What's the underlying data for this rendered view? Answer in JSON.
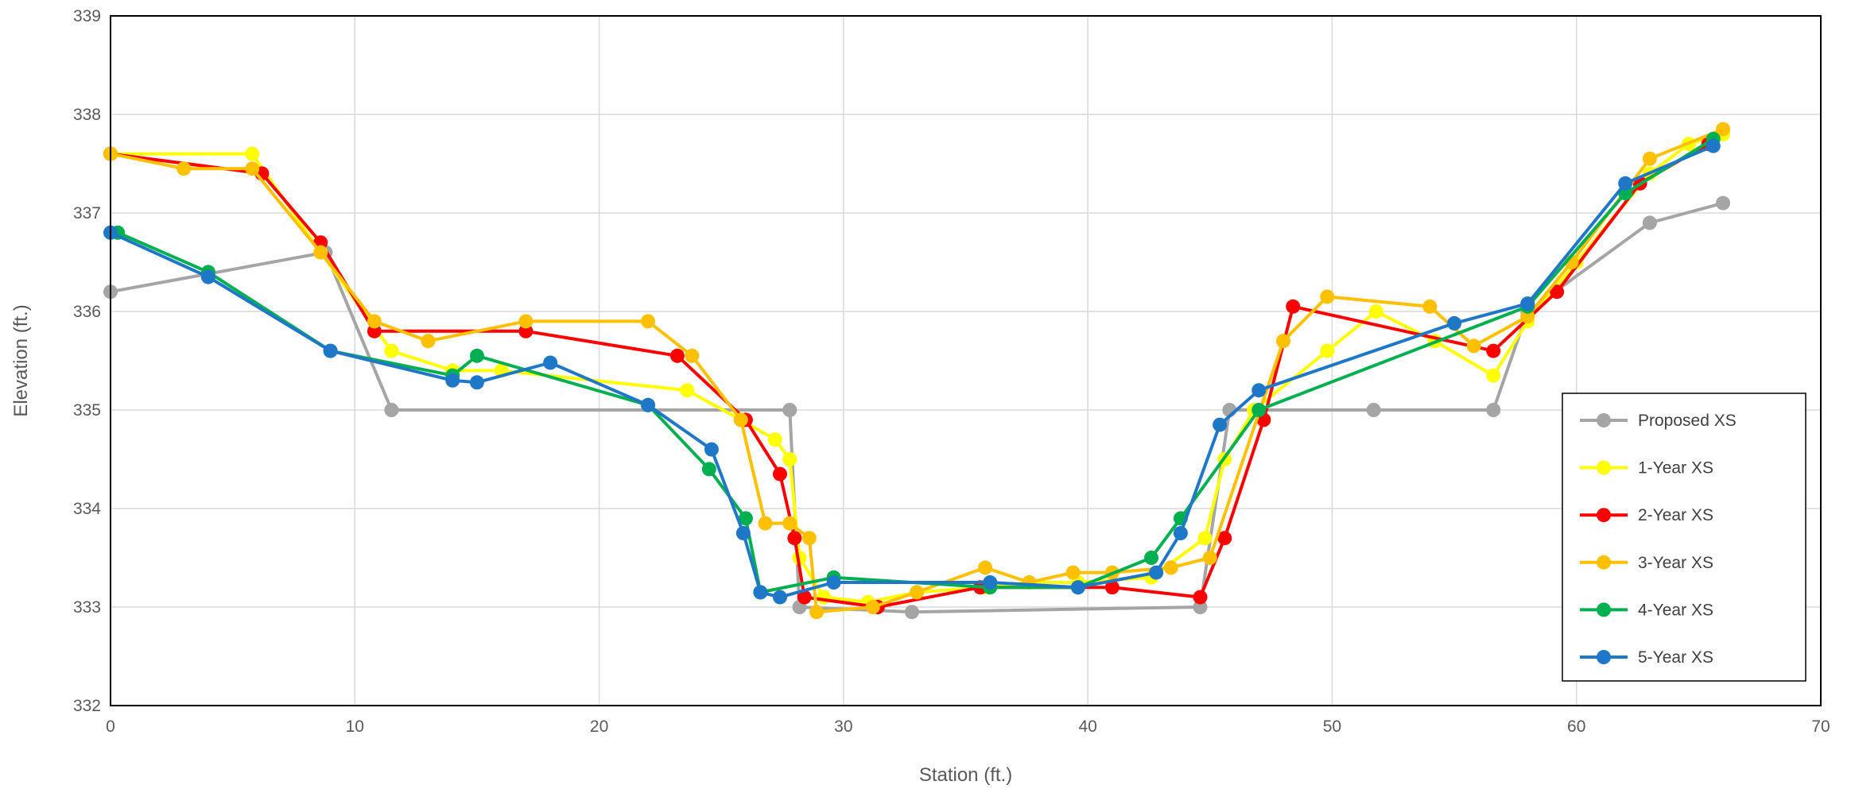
{
  "chart_data": {
    "type": "line",
    "title": "",
    "xlabel": "Station (ft.)",
    "ylabel": "Elevation (ft.)",
    "xlim": [
      0,
      70
    ],
    "ylim": [
      332,
      339
    ],
    "xticks": [
      0,
      10,
      20,
      30,
      40,
      50,
      60,
      70
    ],
    "yticks": [
      332,
      333,
      334,
      335,
      336,
      337,
      338,
      339
    ],
    "grid": true,
    "legend_position": "bottom-right",
    "series": [
      {
        "name": "Proposed XS",
        "color": "#a5a5a5",
        "x": [
          0,
          8.8,
          11.5,
          27.8,
          28.2,
          32.8,
          44.6,
          45.8,
          51.7,
          56.6,
          58.0,
          63.0,
          66.0
        ],
        "y": [
          336.2,
          336.6,
          335.0,
          335.0,
          333.0,
          332.95,
          333.0,
          335.0,
          335.0,
          335.0,
          336.0,
          336.9,
          337.1
        ]
      },
      {
        "name": "1-Year XS",
        "color": "#ffff00",
        "x": [
          0,
          5.8,
          8.6,
          11.5,
          14.0,
          16.0,
          23.6,
          25.8,
          27.2,
          27.8,
          28.2,
          29.2,
          31.0,
          33.0,
          35.8,
          37.6,
          39.6,
          42.6,
          44.8,
          45.6,
          46.8,
          49.8,
          51.8,
          54.2,
          56.6,
          58.0,
          60.0,
          63.0,
          64.6,
          66.0
        ],
        "y": [
          337.6,
          337.6,
          336.6,
          335.6,
          335.4,
          335.4,
          335.2,
          334.9,
          334.7,
          334.5,
          333.5,
          333.1,
          333.05,
          333.15,
          333.2,
          333.25,
          333.25,
          333.3,
          333.7,
          334.5,
          335.0,
          335.6,
          336.0,
          335.7,
          335.35,
          335.9,
          336.5,
          337.4,
          337.7,
          337.8
        ]
      },
      {
        "name": "2-Year XS",
        "color": "#ff0000",
        "x": [
          0,
          6.2,
          8.6,
          10.8,
          17.0,
          23.2,
          26.0,
          27.4,
          28.0,
          28.4,
          31.4,
          35.6,
          41.0,
          44.6,
          45.6,
          47.2,
          48.4,
          56.6,
          59.2,
          62.6,
          65.4
        ],
        "y": [
          337.6,
          337.4,
          336.7,
          335.8,
          335.8,
          335.55,
          334.9,
          334.35,
          333.7,
          333.1,
          333.0,
          333.2,
          333.2,
          333.1,
          333.7,
          334.9,
          336.05,
          335.6,
          336.2,
          337.3,
          337.7
        ]
      },
      {
        "name": "3-Year XS",
        "color": "#ffc000",
        "x": [
          0,
          3.0,
          5.8,
          8.6,
          10.8,
          13.0,
          17.0,
          22.0,
          23.8,
          25.8,
          26.8,
          27.8,
          28.6,
          28.9,
          31.2,
          33.0,
          35.8,
          37.6,
          39.4,
          41.0,
          43.4,
          45.0,
          48.0,
          49.8,
          54.0,
          55.8,
          58.0,
          59.8,
          63.0,
          66.0
        ],
        "y": [
          337.6,
          337.45,
          337.45,
          336.6,
          335.9,
          335.7,
          335.9,
          335.9,
          335.55,
          334.9,
          333.85,
          333.85,
          333.7,
          332.95,
          333.0,
          333.15,
          333.4,
          333.25,
          333.35,
          333.35,
          333.4,
          333.5,
          335.7,
          336.15,
          336.05,
          335.65,
          335.95,
          336.5,
          337.55,
          337.85
        ]
      },
      {
        "name": "4-Year XS",
        "color": "#00b050",
        "x": [
          0.3,
          4.0,
          9.0,
          14.0,
          15.0,
          22.0,
          24.5,
          26.0,
          26.6,
          29.6,
          36.0,
          39.6,
          42.6,
          43.8,
          47.0,
          58.0,
          62.0,
          65.6
        ],
        "y": [
          336.8,
          336.4,
          335.6,
          335.35,
          335.55,
          335.05,
          334.4,
          333.9,
          333.15,
          333.3,
          333.2,
          333.2,
          333.5,
          333.9,
          335.0,
          336.05,
          337.2,
          337.75
        ]
      },
      {
        "name": "5-Year XS",
        "color": "#1f77c7",
        "x": [
          0,
          4.0,
          9.0,
          14.0,
          15.0,
          18.0,
          22.0,
          24.6,
          25.9,
          26.6,
          27.4,
          29.6,
          36.0,
          39.6,
          42.8,
          43.8,
          45.4,
          47.0,
          55.0,
          58.0,
          62.0,
          65.6
        ],
        "y": [
          336.8,
          336.35,
          335.6,
          335.3,
          335.28,
          335.48,
          335.05,
          334.6,
          333.75,
          333.15,
          333.1,
          333.25,
          333.25,
          333.2,
          333.35,
          333.75,
          334.85,
          335.2,
          335.88,
          336.08,
          337.3,
          337.68
        ]
      }
    ]
  }
}
